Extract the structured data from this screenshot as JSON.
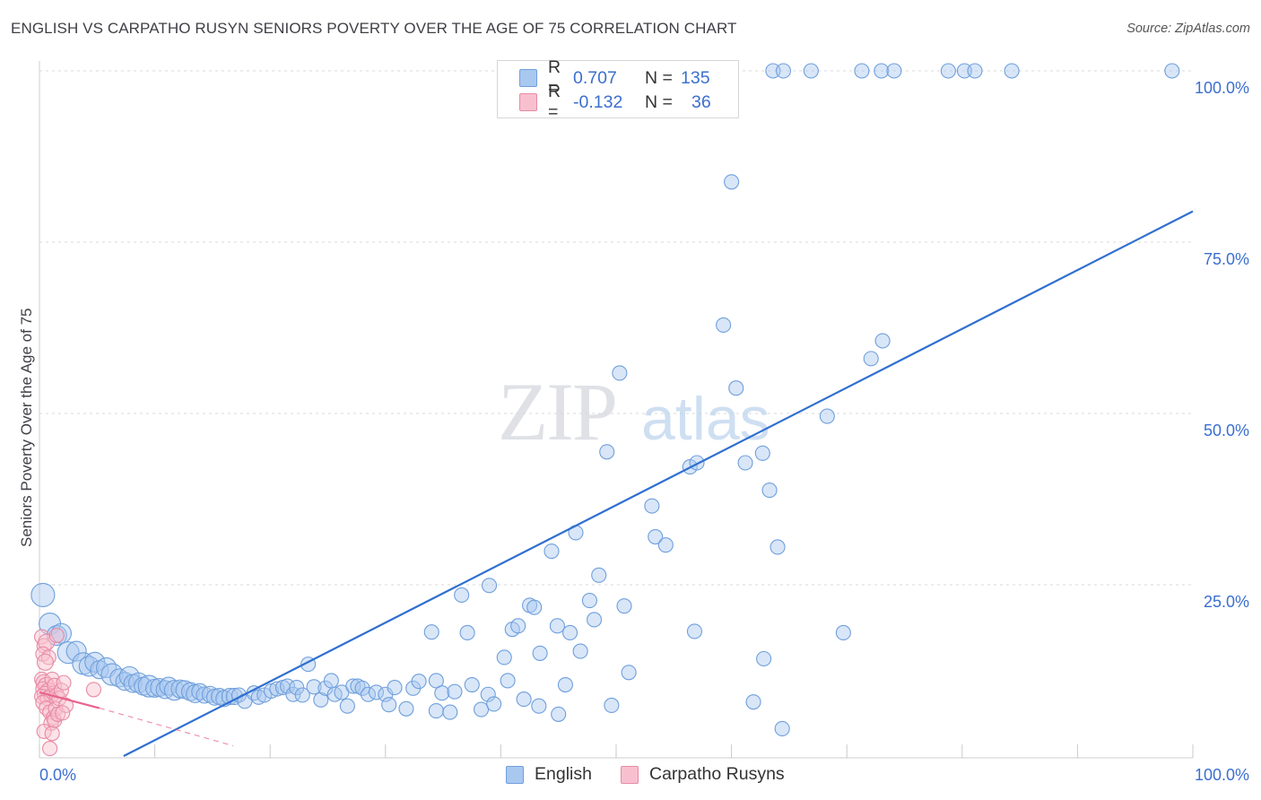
{
  "header": {
    "title": "ENGLISH VS CARPATHO RUSYN SENIORS POVERTY OVER THE AGE OF 75 CORRELATION CHART",
    "source": "Source: ZipAtlas.com"
  },
  "watermark": {
    "zip": "ZIP",
    "atlas": "atlas"
  },
  "legend_top": {
    "rows": [
      {
        "r_label": "R =",
        "r_value": "0.707",
        "n_label": "N =",
        "n_value": "135",
        "color": "#a9c8f0",
        "border": "#6f9fdc"
      },
      {
        "r_label": "R =",
        "r_value": "-0.132",
        "n_label": "N =",
        "n_value": "36",
        "color": "#f8c0cf",
        "border": "#e88aa5"
      }
    ]
  },
  "legend_bottom": {
    "items": [
      {
        "label": "English",
        "color": "#a9c8f0",
        "border": "#6f9fdc"
      },
      {
        "label": "Carpatho Rusyns",
        "color": "#f8c0cf",
        "border": "#e88aa5"
      }
    ]
  },
  "chart_data": {
    "type": "scatter",
    "title": "ENGLISH VS CARPATHO RUSYN SENIORS POVERTY OVER THE AGE OF 75 CORRELATION CHART",
    "xlabel": "",
    "ylabel": "Seniors Poverty Over the Age of 75",
    "xlim": [
      0,
      100
    ],
    "ylim": [
      0,
      100
    ],
    "x_tick_labels": [
      "0.0%",
      "100.0%"
    ],
    "y_tick_labels": [
      "25.0%",
      "50.0%",
      "75.0%",
      "100.0%"
    ],
    "y_ticks": [
      25,
      50,
      75,
      100
    ],
    "grid": true,
    "colors": {
      "english": "#6f9fdc",
      "english_fill": "rgba(169,200,240,0.45)",
      "english_line": "#2f6fd0",
      "rusyn": "#e88aa5",
      "rusyn_fill": "rgba(248,192,207,0.45)",
      "rusyn_line": "#e8638f"
    },
    "series": [
      {
        "name": "English",
        "trend": {
          "x": [
            7.3,
            100
          ],
          "y": [
            0,
            79.5
          ]
        },
        "points": [
          [
            0.3,
            23.5,
            13
          ],
          [
            0.9,
            19.3,
            12
          ],
          [
            1.5,
            17.6,
            11
          ],
          [
            1.9,
            17.9,
            11
          ],
          [
            2.5,
            15.1,
            12
          ],
          [
            3.2,
            15.3,
            11
          ],
          [
            3.8,
            13.5,
            12
          ],
          [
            4.3,
            13.1,
            11
          ],
          [
            4.8,
            13.7,
            11
          ],
          [
            5.2,
            12.6,
            10
          ],
          [
            5.8,
            12.9,
            11
          ],
          [
            6.3,
            11.9,
            12
          ],
          [
            6.9,
            11.4,
            10
          ],
          [
            7.4,
            10.9,
            10
          ],
          [
            7.8,
            11.6,
            11
          ],
          [
            8.1,
            10.6,
            10
          ],
          [
            8.6,
            10.7,
            11
          ],
          [
            9.0,
            10.2,
            10
          ],
          [
            9.5,
            10.2,
            12
          ],
          [
            10.0,
            9.9,
            10
          ],
          [
            10.4,
            10.0,
            10
          ],
          [
            10.9,
            9.7,
            10
          ],
          [
            11.2,
            10.2,
            10
          ],
          [
            11.7,
            9.6,
            11
          ],
          [
            12.2,
            9.8,
            10
          ],
          [
            12.6,
            9.7,
            10
          ],
          [
            13.1,
            9.4,
            10
          ],
          [
            13.5,
            9.1,
            10
          ],
          [
            13.9,
            9.4,
            9
          ],
          [
            14.3,
            8.9,
            9
          ],
          [
            14.8,
            9.0,
            9
          ],
          [
            15.2,
            8.6,
            9
          ],
          [
            15.6,
            8.7,
            9
          ],
          [
            16.0,
            8.4,
            9
          ],
          [
            16.5,
            8.7,
            9
          ],
          [
            16.9,
            8.7,
            9
          ],
          [
            17.3,
            8.9,
            8
          ],
          [
            17.8,
            8.0,
            8
          ],
          [
            18.6,
            9.2,
            8
          ],
          [
            19.0,
            8.6,
            8
          ],
          [
            19.5,
            8.9,
            8
          ],
          [
            20.1,
            9.5,
            8
          ],
          [
            20.6,
            9.8,
            8
          ],
          [
            21.1,
            10.0,
            8
          ],
          [
            21.5,
            10.2,
            8
          ],
          [
            22.0,
            9.0,
            8
          ],
          [
            22.3,
            10.0,
            8
          ],
          [
            22.8,
            8.9,
            8
          ],
          [
            23.3,
            13.4,
            8
          ],
          [
            23.8,
            10.1,
            8
          ],
          [
            24.4,
            8.2,
            8
          ],
          [
            24.8,
            9.9,
            8
          ],
          [
            25.3,
            11.0,
            8
          ],
          [
            25.6,
            9.0,
            8
          ],
          [
            26.2,
            9.3,
            8
          ],
          [
            26.7,
            7.3,
            8
          ],
          [
            27.2,
            10.2,
            8
          ],
          [
            27.6,
            10.2,
            8
          ],
          [
            28.0,
            9.9,
            8
          ],
          [
            28.5,
            9.0,
            8
          ],
          [
            29.2,
            9.3,
            8
          ],
          [
            30.0,
            9.0,
            8
          ],
          [
            30.3,
            7.5,
            8
          ],
          [
            30.8,
            10.0,
            8
          ],
          [
            31.8,
            6.9,
            8
          ],
          [
            32.4,
            9.9,
            8
          ],
          [
            32.9,
            10.9,
            8
          ],
          [
            34.0,
            18.1,
            8
          ],
          [
            34.4,
            11.0,
            8
          ],
          [
            34.4,
            6.6,
            8
          ],
          [
            34.9,
            9.2,
            8
          ],
          [
            35.6,
            6.4,
            8
          ],
          [
            36.0,
            9.4,
            8
          ],
          [
            36.6,
            23.5,
            8
          ],
          [
            37.1,
            18.0,
            8
          ],
          [
            37.5,
            10.4,
            8
          ],
          [
            38.3,
            6.8,
            8
          ],
          [
            38.9,
            9.0,
            8
          ],
          [
            39.0,
            24.9,
            8
          ],
          [
            39.4,
            7.6,
            8
          ],
          [
            40.3,
            14.4,
            8
          ],
          [
            40.6,
            11.0,
            8
          ],
          [
            41.0,
            18.5,
            8
          ],
          [
            41.5,
            19.0,
            8
          ],
          [
            42.0,
            8.3,
            8
          ],
          [
            42.5,
            22.0,
            8
          ],
          [
            42.9,
            21.7,
            8
          ],
          [
            43.3,
            7.3,
            8
          ],
          [
            43.4,
            15.0,
            8
          ],
          [
            44.4,
            29.9,
            8
          ],
          [
            44.9,
            19.0,
            8
          ],
          [
            45.0,
            6.1,
            8
          ],
          [
            45.6,
            10.4,
            8
          ],
          [
            46.0,
            18.0,
            8
          ],
          [
            46.5,
            32.6,
            8
          ],
          [
            46.9,
            15.3,
            8
          ],
          [
            47.7,
            22.7,
            8
          ],
          [
            48.1,
            19.9,
            8
          ],
          [
            48.5,
            26.4,
            8
          ],
          [
            49.2,
            44.4,
            8
          ],
          [
            49.6,
            7.4,
            8
          ],
          [
            50.3,
            55.9,
            8
          ],
          [
            50.7,
            21.9,
            8
          ],
          [
            51.1,
            12.2,
            8
          ],
          [
            53.1,
            36.5,
            8
          ],
          [
            53.4,
            32.0,
            8
          ],
          [
            54.3,
            30.8,
            8
          ],
          [
            56.4,
            42.2,
            8
          ],
          [
            56.8,
            18.2,
            8
          ],
          [
            57.0,
            42.8,
            8
          ],
          [
            59.3,
            62.9,
            8
          ],
          [
            60.4,
            53.7,
            8
          ],
          [
            61.2,
            42.8,
            8
          ],
          [
            61.9,
            7.9,
            8
          ],
          [
            62.7,
            44.2,
            8
          ],
          [
            62.8,
            14.2,
            8
          ],
          [
            63.3,
            38.8,
            8
          ],
          [
            64.0,
            30.5,
            8
          ],
          [
            64.4,
            4.0,
            8
          ],
          [
            68.3,
            49.6,
            8
          ],
          [
            69.7,
            18.0,
            8
          ],
          [
            72.1,
            58.0,
            8
          ],
          [
            73.1,
            60.6,
            8
          ],
          [
            60.0,
            83.8,
            8
          ],
          [
            63.6,
            100,
            8
          ],
          [
            64.5,
            100,
            8
          ],
          [
            66.9,
            100,
            8
          ],
          [
            71.3,
            100,
            8
          ],
          [
            73.0,
            100,
            8
          ],
          [
            74.1,
            100,
            8
          ],
          [
            78.8,
            100,
            8
          ],
          [
            80.2,
            100,
            8
          ],
          [
            81.1,
            100,
            8
          ],
          [
            84.3,
            100,
            8
          ],
          [
            98.2,
            100,
            8
          ]
        ]
      },
      {
        "name": "Carpatho Rusyns",
        "trend": {
          "x": [
            0,
            5.2
          ],
          "y": [
            9.3,
            7.0
          ]
        },
        "trend_dashed": {
          "x": [
            5.2,
            16.8
          ],
          "y": [
            7.0,
            1.5
          ]
        },
        "points": [
          [
            0.2,
            17.4,
            8
          ],
          [
            0.4,
            16.1,
            8
          ],
          [
            0.6,
            16.6,
            9
          ],
          [
            0.3,
            14.9,
            8
          ],
          [
            0.8,
            14.4,
            8
          ],
          [
            0.5,
            13.7,
            9
          ],
          [
            0.2,
            11.2,
            8
          ],
          [
            0.4,
            10.7,
            9
          ],
          [
            0.6,
            10.3,
            9
          ],
          [
            0.3,
            9.8,
            8
          ],
          [
            0.8,
            9.5,
            9
          ],
          [
            0.5,
            9.0,
            9
          ],
          [
            0.2,
            8.7,
            8
          ],
          [
            0.7,
            8.4,
            8
          ],
          [
            1.0,
            8.8,
            8
          ],
          [
            1.1,
            11.2,
            8
          ],
          [
            1.3,
            10.3,
            8
          ],
          [
            1.5,
            8.9,
            8
          ],
          [
            0.3,
            7.8,
            8
          ],
          [
            0.6,
            7.0,
            8
          ],
          [
            0.9,
            6.4,
            8
          ],
          [
            1.2,
            5.6,
            8
          ],
          [
            1.4,
            6.9,
            8
          ],
          [
            1.7,
            8.4,
            8
          ],
          [
            1.9,
            9.6,
            8
          ],
          [
            2.1,
            10.7,
            8
          ],
          [
            1.0,
            4.8,
            8
          ],
          [
            1.3,
            5.2,
            8
          ],
          [
            1.6,
            6.1,
            8
          ],
          [
            0.4,
            3.6,
            8
          ],
          [
            1.1,
            3.3,
            8
          ],
          [
            0.9,
            1.1,
            8
          ],
          [
            2.3,
            7.4,
            8
          ],
          [
            2.0,
            6.3,
            8
          ],
          [
            4.7,
            9.7,
            8
          ],
          [
            1.5,
            17.6,
            8
          ]
        ]
      }
    ]
  }
}
